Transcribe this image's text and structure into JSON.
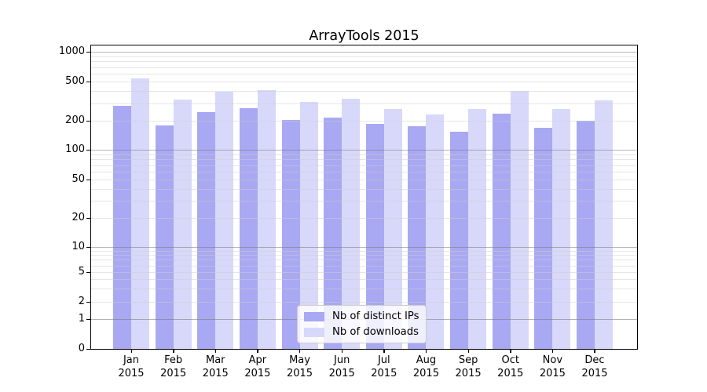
{
  "title": "ArrayTools 2015",
  "legend": {
    "items": [
      {
        "label": "Nb of distinct IPs",
        "color": "#a8a8f3"
      },
      {
        "label": "Nb of downloads",
        "color": "#d8d8fa"
      }
    ]
  },
  "chart_data": {
    "type": "bar",
    "title": "ArrayTools 2015",
    "categories": [
      "Jan",
      "Feb",
      "Mar",
      "Apr",
      "May",
      "Jun",
      "Jul",
      "Aug",
      "Sep",
      "Oct",
      "Nov",
      "Dec"
    ],
    "category_year": "2015",
    "series": [
      {
        "name": "Nb of distinct IPs",
        "color": "#a8a8f3",
        "values": [
          285,
          180,
          245,
          270,
          205,
          215,
          185,
          175,
          155,
          235,
          170,
          200
        ]
      },
      {
        "name": "Nb of downloads",
        "color": "#d8d8fa",
        "values": [
          540,
          330,
          395,
          410,
          310,
          335,
          265,
          230,
          265,
          400,
          265,
          325
        ]
      }
    ],
    "xlabel": "",
    "ylabel": "",
    "y_axis": {
      "scale": "symlog",
      "ticks": [
        0,
        1,
        2,
        5,
        10,
        20,
        50,
        100,
        200,
        500,
        1000
      ],
      "major_gridline_values": [
        1,
        10,
        100,
        1000
      ],
      "minor_gridline_values": [
        3,
        4,
        6,
        7,
        8,
        9,
        30,
        40,
        60,
        70,
        80,
        90,
        300,
        400,
        600,
        700,
        800,
        900
      ],
      "ylim": [
        0,
        1160
      ]
    },
    "grid": true,
    "legend_position": "lower center"
  }
}
